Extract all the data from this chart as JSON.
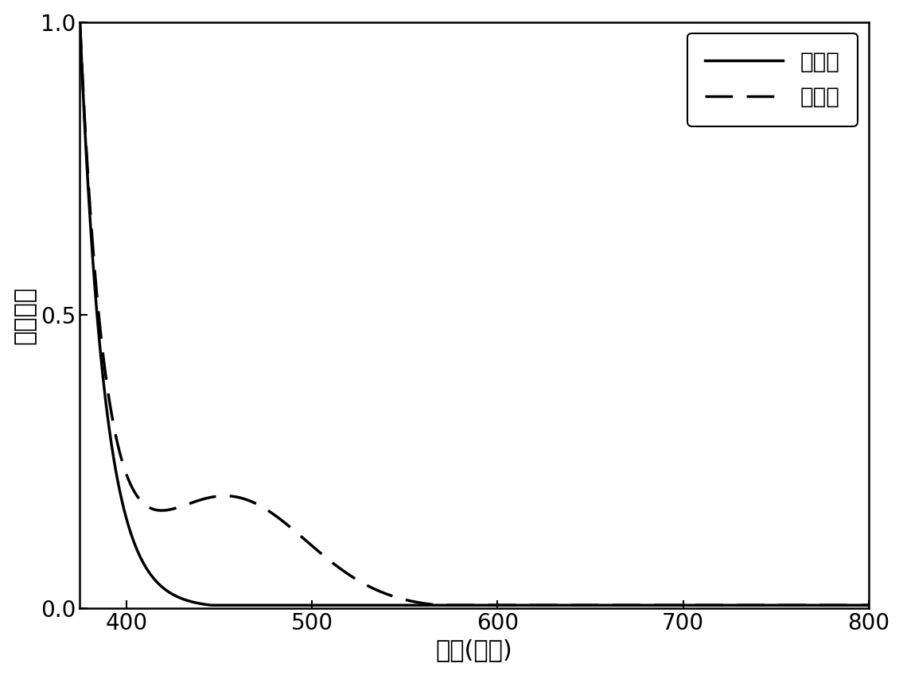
{
  "xlabel": "波长(纳米)",
  "ylabel": "吸收强度",
  "legend_solid": "照射前",
  "legend_dashed": "照射后",
  "xlim": [
    375,
    800
  ],
  "ylim": [
    0.0,
    1.0
  ],
  "xticks": [
    400,
    500,
    600,
    700,
    800
  ],
  "yticks": [
    0.0,
    0.5,
    1.0
  ],
  "background_color": "#ffffff",
  "line_color": "#000000",
  "xlabel_fontsize": 22,
  "ylabel_fontsize": 22,
  "tick_fontsize": 20,
  "legend_fontsize": 20
}
